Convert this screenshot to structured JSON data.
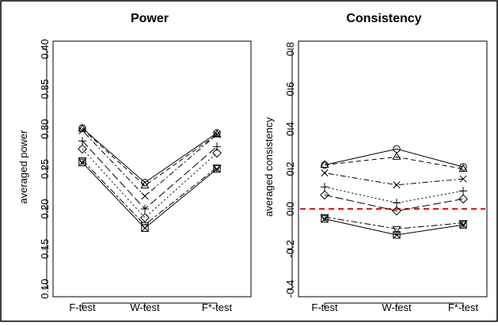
{
  "chart_data": [
    {
      "type": "line",
      "title": "Power",
      "xlabel": "",
      "ylabel": "averaged power",
      "categories": [
        "F-test",
        "W-test",
        "F*-test"
      ],
      "ylim": [
        0.1,
        0.4
      ],
      "yticks": [
        "0.10",
        "0.15",
        "0.20",
        "0.25",
        "0.30",
        "0.35",
        "0.40"
      ],
      "yticks_values": [
        0.1,
        0.15,
        0.2,
        0.25,
        0.3,
        0.35,
        0.4
      ],
      "grid": false,
      "series": [
        {
          "marker": "circle",
          "linestyle": "solid",
          "values": [
            0.301,
            0.233,
            0.295
          ]
        },
        {
          "marker": "triangle",
          "linestyle": "dashed",
          "values": [
            0.3,
            0.229,
            0.293
          ]
        },
        {
          "marker": "x",
          "linestyle": "dotdash",
          "values": [
            0.298,
            0.216,
            0.293
          ]
        },
        {
          "marker": "plus",
          "linestyle": "longdash",
          "values": [
            0.285,
            0.2,
            0.278
          ]
        },
        {
          "marker": "diamond",
          "linestyle": "dotted",
          "values": [
            0.275,
            0.189,
            0.27
          ]
        },
        {
          "marker": "inv-triangle",
          "linestyle": "twodash",
          "values": [
            0.261,
            0.18,
            0.252
          ]
        },
        {
          "marker": "square-x",
          "linestyle": "solid",
          "values": [
            0.258,
            0.176,
            0.25
          ]
        }
      ]
    },
    {
      "type": "line",
      "title": "Consistency",
      "xlabel": "",
      "ylabel": "averaged consistency",
      "categories": [
        "F-test",
        "W-test",
        "F*-test"
      ],
      "ylim": [
        -0.4,
        0.8
      ],
      "yticks": [
        "-0.4",
        "-0.2",
        "0.0",
        "0.2",
        "0.4",
        "0.6",
        "0.8"
      ],
      "yticks_values": [
        -0.4,
        -0.2,
        0.0,
        0.2,
        0.4,
        0.6,
        0.8
      ],
      "grid": false,
      "reference_line": {
        "y": 0.0,
        "color": "#e8191e",
        "style": "dashed"
      },
      "series": [
        {
          "marker": "circle",
          "linestyle": "solid",
          "values": [
            0.22,
            0.3,
            0.21
          ]
        },
        {
          "marker": "triangle",
          "linestyle": "dashed",
          "values": [
            0.22,
            0.26,
            0.2
          ]
        },
        {
          "marker": "x",
          "linestyle": "dotdash",
          "values": [
            0.18,
            0.12,
            0.15
          ]
        },
        {
          "marker": "plus",
          "linestyle": "dotted",
          "values": [
            0.11,
            0.03,
            0.09
          ]
        },
        {
          "marker": "diamond",
          "linestyle": "longdash",
          "values": [
            0.07,
            -0.01,
            0.05
          ]
        },
        {
          "marker": "inv-triangle",
          "linestyle": "twodash",
          "values": [
            -0.04,
            -0.1,
            -0.07
          ]
        },
        {
          "marker": "square-x",
          "linestyle": "solid",
          "values": [
            -0.05,
            -0.13,
            -0.08
          ]
        }
      ]
    }
  ]
}
